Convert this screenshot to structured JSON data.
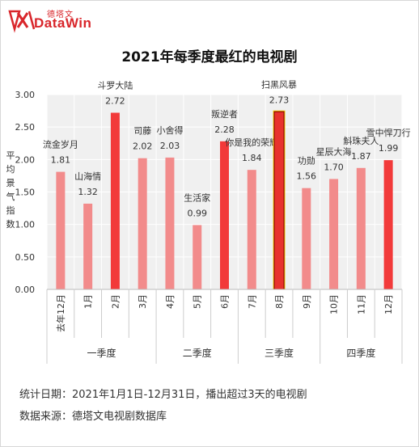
{
  "logo": {
    "cn": "德塔文",
    "en": "DataWin"
  },
  "chart_data": {
    "type": "bar",
    "title": "2021年每季度最红的电视剧",
    "ylabel": "平均景气指数",
    "ylim": [
      0,
      3
    ],
    "yticks": [
      "0.00",
      "0.50",
      "1.00",
      "1.50",
      "2.00",
      "2.50",
      "3.00"
    ],
    "categories": [
      "去年12月",
      "1月",
      "2月",
      "3月",
      "4月",
      "5月",
      "6月",
      "7月",
      "8月",
      "9月",
      "10月",
      "11月",
      "12月"
    ],
    "values": [
      1.81,
      1.32,
      2.72,
      2.02,
      2.03,
      0.99,
      2.28,
      1.84,
      2.73,
      1.56,
      1.7,
      1.87,
      1.99
    ],
    "value_labels": [
      "1.81",
      "1.32",
      "2.72",
      "2.02",
      "2.03",
      "0.99",
      "2.28",
      "1.84",
      "2.73",
      "1.56",
      "1.70",
      "1.87",
      "1.99"
    ],
    "drama_names": [
      "流金岁月",
      "山海情",
      "斗罗大陆",
      "司藤",
      "小舍得",
      "生活家",
      "叛逆者",
      "你是我的荣耀",
      "扫黑风暴",
      "功勋",
      "星辰大海",
      "斛珠夫人",
      "雪中悍刀行"
    ],
    "quarters": [
      {
        "label": "一季度",
        "start": 0,
        "end": 3
      },
      {
        "label": "二季度",
        "start": 4,
        "end": 6
      },
      {
        "label": "三季度",
        "start": 7,
        "end": 9
      },
      {
        "label": "四季度",
        "start": 10,
        "end": 12
      }
    ],
    "highlight": [
      2,
      6,
      8,
      12
    ],
    "top_overall": 8,
    "colors": {
      "normal": "#f28b8b",
      "highlight": "#f23a3a",
      "top": "#e8322e",
      "top_outline": "#f5c400",
      "top_border": "#7a0000",
      "plot_bg": "#f0f0f0"
    }
  },
  "notes": {
    "line1": "统计日期：2021年1月1日-12月31日，播出超过3天的电视剧",
    "line2": "数据来源：德塔文电视剧数据库"
  }
}
